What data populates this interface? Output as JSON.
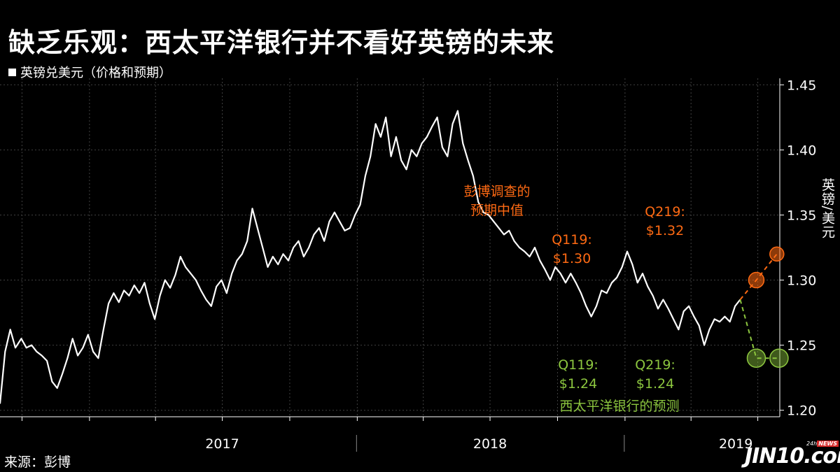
{
  "title": "缺乏乐观：西太平洋银行并不看好英镑的未来",
  "legend_label": "英镑兑美元（价格和预期）",
  "source": "来源：彭博",
  "logo": {
    "main": "JIN10.com",
    "sub_prefix": "24h",
    "sub_badge": "NEWS"
  },
  "colors": {
    "background": "#000000",
    "price_line": "#ffffff",
    "bloomberg_forecast": "#ff6a13",
    "westpac_forecast": "#8cc63f",
    "grid": "#404040"
  },
  "chart_data": {
    "type": "line",
    "ylabel": "英镑/美元",
    "ylim": [
      1.195,
      1.455
    ],
    "yticks": [
      1.2,
      1.25,
      1.3,
      1.35,
      1.4,
      1.45
    ],
    "ytick_labels": [
      "1.20",
      "1.25",
      "1.30",
      "1.35",
      "1.40",
      "1.45"
    ],
    "xlim": [
      "2016-09-01",
      "2019-07-31"
    ],
    "x_period_labels": [
      {
        "label": "2017",
        "date": "2017-07-01"
      },
      {
        "label": "2018",
        "date": "2018-07-01"
      },
      {
        "label": "2019",
        "date": "2019-06-01"
      }
    ],
    "year_boundaries": [
      "2017-12-31",
      "2018-12-31"
    ],
    "series": [
      {
        "key": "price",
        "points": [
          [
            "2016-09-01",
            1.205
          ],
          [
            "2016-09-08",
            1.245
          ],
          [
            "2016-09-15",
            1.262
          ],
          [
            "2016-09-22",
            1.248
          ],
          [
            "2016-09-30",
            1.255
          ],
          [
            "2016-10-07",
            1.248
          ],
          [
            "2016-10-14",
            1.25
          ],
          [
            "2016-10-21",
            1.245
          ],
          [
            "2016-10-28",
            1.242
          ],
          [
            "2016-11-04",
            1.238
          ],
          [
            "2016-11-11",
            1.222
          ],
          [
            "2016-11-18",
            1.217
          ],
          [
            "2016-11-25",
            1.228
          ],
          [
            "2016-12-02",
            1.24
          ],
          [
            "2016-12-09",
            1.255
          ],
          [
            "2016-12-16",
            1.242
          ],
          [
            "2016-12-23",
            1.248
          ],
          [
            "2016-12-30",
            1.258
          ],
          [
            "2017-01-06",
            1.245
          ],
          [
            "2017-01-13",
            1.24
          ],
          [
            "2017-01-20",
            1.262
          ],
          [
            "2017-01-27",
            1.282
          ],
          [
            "2017-02-03",
            1.29
          ],
          [
            "2017-02-10",
            1.283
          ],
          [
            "2017-02-17",
            1.292
          ],
          [
            "2017-02-24",
            1.288
          ],
          [
            "2017-03-03",
            1.296
          ],
          [
            "2017-03-10",
            1.29
          ],
          [
            "2017-03-17",
            1.298
          ],
          [
            "2017-03-24",
            1.282
          ],
          [
            "2017-03-31",
            1.27
          ],
          [
            "2017-04-07",
            1.288
          ],
          [
            "2017-04-14",
            1.3
          ],
          [
            "2017-04-21",
            1.294
          ],
          [
            "2017-04-28",
            1.304
          ],
          [
            "2017-05-05",
            1.318
          ],
          [
            "2017-05-12",
            1.31
          ],
          [
            "2017-05-19",
            1.305
          ],
          [
            "2017-05-26",
            1.3
          ],
          [
            "2017-06-02",
            1.292
          ],
          [
            "2017-06-09",
            1.285
          ],
          [
            "2017-06-16",
            1.28
          ],
          [
            "2017-06-23",
            1.295
          ],
          [
            "2017-06-30",
            1.3
          ],
          [
            "2017-07-07",
            1.29
          ],
          [
            "2017-07-14",
            1.305
          ],
          [
            "2017-07-21",
            1.315
          ],
          [
            "2017-07-28",
            1.32
          ],
          [
            "2017-08-04",
            1.33
          ],
          [
            "2017-08-11",
            1.355
          ],
          [
            "2017-08-18",
            1.34
          ],
          [
            "2017-08-25",
            1.325
          ],
          [
            "2017-09-01",
            1.31
          ],
          [
            "2017-09-08",
            1.318
          ],
          [
            "2017-09-15",
            1.312
          ],
          [
            "2017-09-22",
            1.32
          ],
          [
            "2017-09-29",
            1.315
          ],
          [
            "2017-10-06",
            1.325
          ],
          [
            "2017-10-13",
            1.33
          ],
          [
            "2017-10-20",
            1.318
          ],
          [
            "2017-10-27",
            1.325
          ],
          [
            "2017-11-03",
            1.335
          ],
          [
            "2017-11-10",
            1.34
          ],
          [
            "2017-11-17",
            1.33
          ],
          [
            "2017-11-24",
            1.345
          ],
          [
            "2017-12-01",
            1.352
          ],
          [
            "2017-12-08",
            1.345
          ],
          [
            "2017-12-15",
            1.338
          ],
          [
            "2017-12-22",
            1.34
          ],
          [
            "2017-12-29",
            1.35
          ],
          [
            "2018-01-05",
            1.358
          ],
          [
            "2018-01-12",
            1.38
          ],
          [
            "2018-01-19",
            1.395
          ],
          [
            "2018-01-26",
            1.42
          ],
          [
            "2018-02-02",
            1.41
          ],
          [
            "2018-02-09",
            1.425
          ],
          [
            "2018-02-16",
            1.395
          ],
          [
            "2018-02-23",
            1.41
          ],
          [
            "2018-03-02",
            1.392
          ],
          [
            "2018-03-09",
            1.385
          ],
          [
            "2018-03-16",
            1.4
          ],
          [
            "2018-03-23",
            1.395
          ],
          [
            "2018-03-30",
            1.405
          ],
          [
            "2018-04-06",
            1.41
          ],
          [
            "2018-04-13",
            1.418
          ],
          [
            "2018-04-20",
            1.425
          ],
          [
            "2018-04-27",
            1.402
          ],
          [
            "2018-05-04",
            1.395
          ],
          [
            "2018-05-11",
            1.42
          ],
          [
            "2018-05-18",
            1.43
          ],
          [
            "2018-05-25",
            1.405
          ],
          [
            "2018-06-01",
            1.392
          ],
          [
            "2018-06-08",
            1.38
          ],
          [
            "2018-06-15",
            1.36
          ],
          [
            "2018-06-22",
            1.352
          ],
          [
            "2018-06-29",
            1.35
          ],
          [
            "2018-07-06",
            1.345
          ],
          [
            "2018-07-13",
            1.34
          ],
          [
            "2018-07-20",
            1.335
          ],
          [
            "2018-07-27",
            1.338
          ],
          [
            "2018-08-03",
            1.33
          ],
          [
            "2018-08-10",
            1.325
          ],
          [
            "2018-08-17",
            1.322
          ],
          [
            "2018-08-24",
            1.318
          ],
          [
            "2018-08-31",
            1.325
          ],
          [
            "2018-09-07",
            1.315
          ],
          [
            "2018-09-14",
            1.308
          ],
          [
            "2018-09-21",
            1.3
          ],
          [
            "2018-09-28",
            1.31
          ],
          [
            "2018-10-05",
            1.305
          ],
          [
            "2018-10-12",
            1.298
          ],
          [
            "2018-10-19",
            1.305
          ],
          [
            "2018-10-26",
            1.298
          ],
          [
            "2018-11-02",
            1.29
          ],
          [
            "2018-11-09",
            1.28
          ],
          [
            "2018-11-16",
            1.272
          ],
          [
            "2018-11-23",
            1.28
          ],
          [
            "2018-11-30",
            1.292
          ],
          [
            "2018-12-07",
            1.29
          ],
          [
            "2018-12-14",
            1.298
          ],
          [
            "2018-12-21",
            1.302
          ],
          [
            "2018-12-28",
            1.31
          ],
          [
            "2019-01-04",
            1.322
          ],
          [
            "2019-01-11",
            1.312
          ],
          [
            "2019-01-18",
            1.298
          ],
          [
            "2019-01-25",
            1.305
          ],
          [
            "2019-02-01",
            1.295
          ],
          [
            "2019-02-08",
            1.288
          ],
          [
            "2019-02-15",
            1.278
          ],
          [
            "2019-02-22",
            1.285
          ],
          [
            "2019-03-01",
            1.278
          ],
          [
            "2019-03-08",
            1.27
          ],
          [
            "2019-03-15",
            1.262
          ],
          [
            "2019-03-22",
            1.276
          ],
          [
            "2019-03-29",
            1.28
          ],
          [
            "2019-04-05",
            1.272
          ],
          [
            "2019-04-12",
            1.265
          ],
          [
            "2019-04-19",
            1.25
          ],
          [
            "2019-04-26",
            1.262
          ],
          [
            "2019-05-03",
            1.27
          ],
          [
            "2019-05-10",
            1.268
          ],
          [
            "2019-05-17",
            1.272
          ],
          [
            "2019-05-24",
            1.268
          ],
          [
            "2019-05-31",
            1.28
          ],
          [
            "2019-06-07",
            1.285
          ]
        ]
      },
      {
        "key": "bloomberg_forecast",
        "points": [
          [
            "2019-06-07",
            1.285
          ],
          [
            "2019-06-29",
            1.3
          ],
          [
            "2019-07-27",
            1.32
          ]
        ]
      },
      {
        "key": "westpac_forecast",
        "points": [
          [
            "2019-06-07",
            1.285
          ],
          [
            "2019-06-29",
            1.24
          ],
          [
            "2019-07-30",
            1.24
          ]
        ]
      }
    ],
    "annotations": {
      "bloomberg_title": [
        "彭博调查的",
        "预期中值"
      ],
      "bloomberg_q1": [
        "Q119:",
        "$1.30"
      ],
      "bloomberg_q2": [
        "Q219:",
        "$1.32"
      ],
      "westpac_q1": [
        "Q119:",
        "$1.24"
      ],
      "westpac_q2": [
        "Q219:",
        "$1.24"
      ],
      "westpac_title": "西太平洋银行的预测"
    }
  }
}
